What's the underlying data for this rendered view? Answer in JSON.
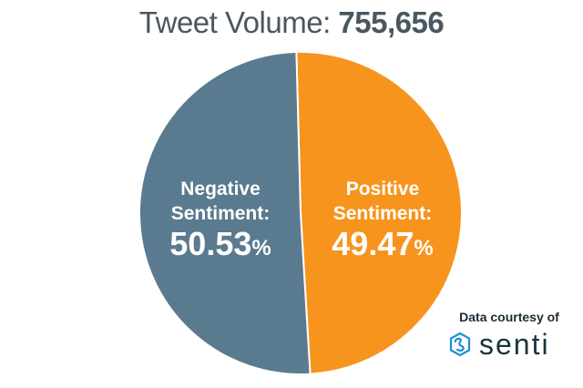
{
  "title": {
    "label": "Tweet Volume:",
    "value": "755,656"
  },
  "chart_data": {
    "type": "pie",
    "slices": [
      {
        "label_line1": "Positive",
        "label_line2": "Sentiment:",
        "value": 49.47,
        "display": "49.47",
        "unit": "%",
        "color": "#f7941d"
      },
      {
        "label_line1": "Negative",
        "label_line2": "Sentiment:",
        "value": 50.53,
        "display": "50.53",
        "unit": "%",
        "color": "#5a7a8f"
      }
    ]
  },
  "credit": {
    "text": "Data courtesy of",
    "brand": "senti",
    "brand_color": "#1e8fd6"
  }
}
